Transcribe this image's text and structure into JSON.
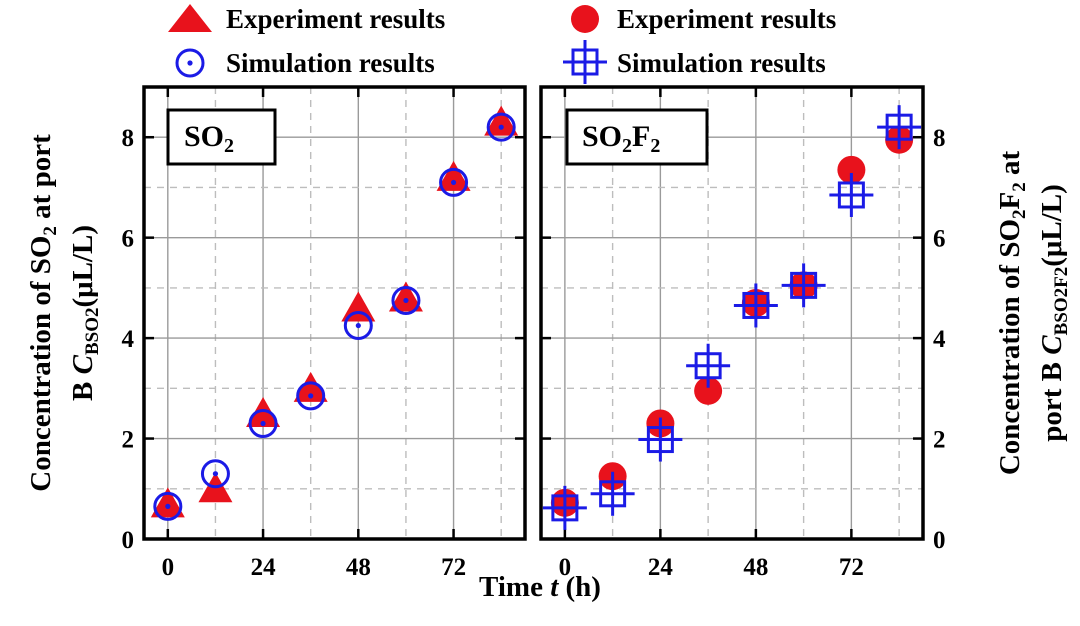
{
  "legend": {
    "left": [
      {
        "marker": "triangle",
        "label": "Experiment results"
      },
      {
        "marker": "circle-dot",
        "label": "Simulation results"
      }
    ],
    "right": [
      {
        "marker": "filled-circle",
        "label": "Experiment results"
      },
      {
        "marker": "square-cross",
        "label": "Simulation results"
      }
    ]
  },
  "colors": {
    "experiment": "#e8121c",
    "simulation": "#1b1be6",
    "frame": "#000000"
  },
  "chart_data": [
    {
      "type": "scatter",
      "id": "so2",
      "panel_label": {
        "base": "SO",
        "sub1": "2",
        "mid": "",
        "sub2": ""
      },
      "ylabel_line1": {
        "pre": "Concentration of SO",
        "sub": "2",
        "post": " at port"
      },
      "ylabel_line2": {
        "pre": "B ",
        "ital": "C",
        "sub": "BSO2",
        "post": "(μL/L)"
      },
      "xticks": [
        "0",
        "24",
        "48",
        "72"
      ],
      "xtick_values": [
        0,
        24,
        48,
        72
      ],
      "yticks": [
        "0",
        "2",
        "4",
        "6",
        "8"
      ],
      "ytick_values": [
        0,
        2,
        4,
        6,
        8
      ],
      "xlim": [
        -6,
        90
      ],
      "ylim": [
        0,
        9
      ],
      "series": [
        {
          "name": "Experiment results",
          "marker": "triangle",
          "x": [
            0,
            12,
            24,
            36,
            48,
            60,
            72,
            84
          ],
          "y": [
            0.65,
            0.95,
            2.45,
            2.95,
            4.55,
            4.75,
            7.15,
            8.25
          ]
        },
        {
          "name": "Simulation results",
          "marker": "circle-dot",
          "x": [
            0,
            12,
            24,
            36,
            48,
            60,
            72,
            84
          ],
          "y": [
            0.65,
            1.3,
            2.3,
            2.85,
            4.25,
            4.75,
            7.1,
            8.2
          ]
        }
      ]
    },
    {
      "type": "scatter",
      "id": "so2f2",
      "panel_label": {
        "base": "SO",
        "sub1": "2",
        "mid": "F",
        "sub2": "2"
      },
      "ylabel_line1": {
        "pre": "Concentration of SO",
        "sub": "2",
        "post": "F",
        "sub2": "2",
        "post2": " at"
      },
      "ylabel_line2": {
        "pre": "port B ",
        "ital": "C",
        "sub": "BSO2F2",
        "post": "(μL/L)"
      },
      "xticks": [
        "0",
        "24",
        "48",
        "72"
      ],
      "xtick_values": [
        0,
        24,
        48,
        72
      ],
      "yticks": [
        "0",
        "2",
        "4",
        "6",
        "8"
      ],
      "ytick_values": [
        0,
        2,
        4,
        6,
        8
      ],
      "xlim": [
        -6,
        90
      ],
      "ylim": [
        0,
        9
      ],
      "series": [
        {
          "name": "Experiment results",
          "marker": "filled-circle",
          "x": [
            0,
            12,
            24,
            36,
            48,
            60,
            72,
            84
          ],
          "y": [
            0.72,
            1.25,
            2.3,
            2.95,
            4.7,
            5.05,
            7.35,
            7.95
          ]
        },
        {
          "name": "Simulation results",
          "marker": "square-cross",
          "x": [
            0,
            12,
            24,
            36,
            48,
            60,
            72,
            84
          ],
          "y": [
            0.62,
            0.9,
            1.98,
            3.45,
            4.65,
            5.05,
            6.85,
            8.2
          ]
        }
      ]
    }
  ],
  "xlabel": {
    "pre": "Time ",
    "ital": "t",
    "post": " (h)"
  }
}
